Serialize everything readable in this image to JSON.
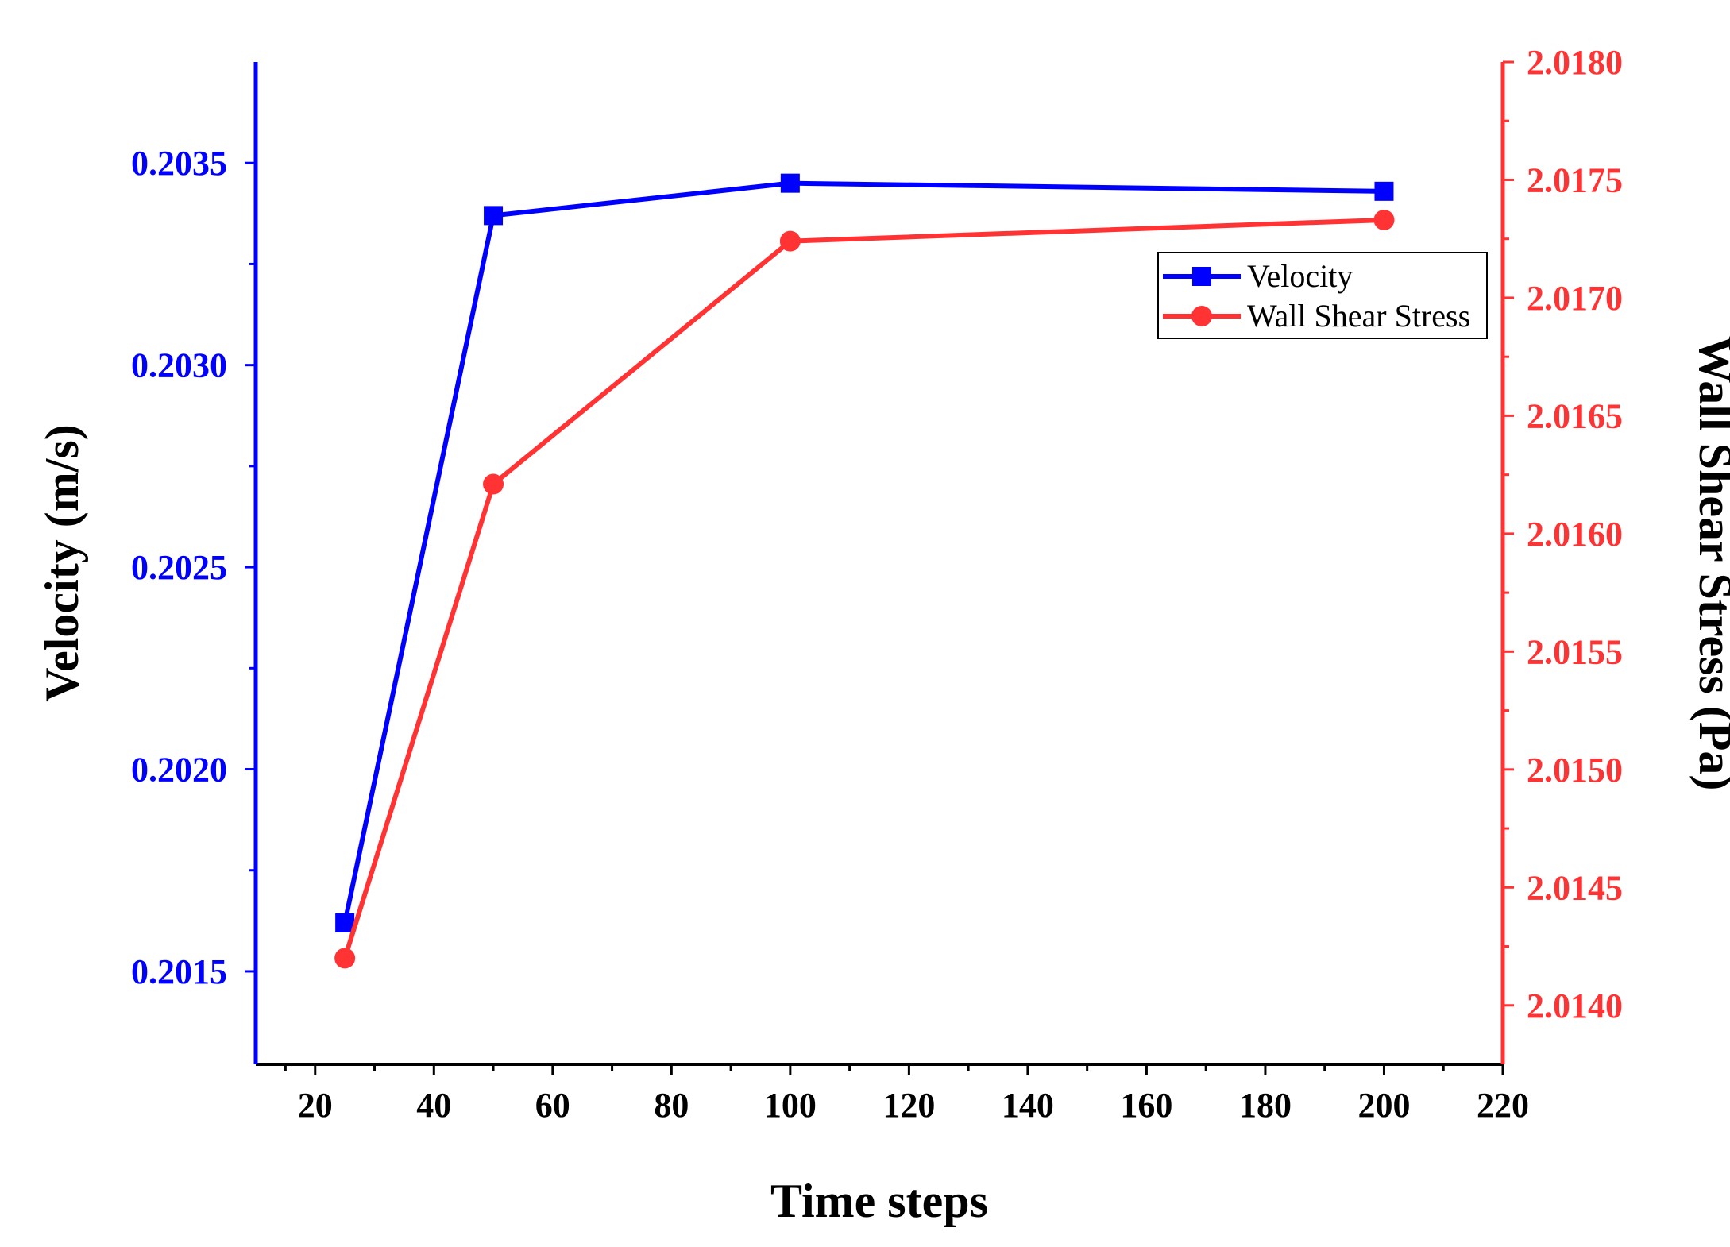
{
  "chart_data": {
    "type": "line",
    "x": [
      25,
      50,
      100,
      200
    ],
    "xlabel": "Time steps",
    "xlim": [
      10,
      220
    ],
    "xticks": [
      20,
      40,
      60,
      80,
      100,
      120,
      140,
      160,
      180,
      200,
      220
    ],
    "x_tick_labels": [
      "20",
      "40",
      "60",
      "80",
      "100",
      "120",
      "140",
      "160",
      "180",
      "200",
      "220"
    ],
    "y_left": {
      "label": "Velocity (m/s)",
      "lim": [
        0.20127,
        0.20375
      ],
      "ticks": [
        0.2015,
        0.202,
        0.2025,
        0.203,
        0.2035
      ],
      "tick_labels": [
        "0.2015",
        "0.2020",
        "0.2025",
        "0.2030",
        "0.2035"
      ],
      "color": "#0000FF"
    },
    "y_right": {
      "label": "Wall Shear Stress (Pa)",
      "lim": [
        2.01375,
        2.018
      ],
      "ticks": [
        2.014,
        2.0145,
        2.015,
        2.0155,
        2.016,
        2.0165,
        2.017,
        2.0175,
        2.018
      ],
      "tick_labels": [
        "2.0140",
        "2.0145",
        "2.0150",
        "2.0155",
        "2.0160",
        "2.0165",
        "2.0170",
        "2.0175",
        "2.0180"
      ],
      "color": "#FF3333"
    },
    "series": [
      {
        "name": "Velocity",
        "axis": "left",
        "marker": "square",
        "color": "#0000FF",
        "values": [
          0.20162,
          0.20337,
          0.20345,
          0.20343
        ]
      },
      {
        "name": "Wall Shear Stress",
        "axis": "right",
        "marker": "circle",
        "color": "#FF3333",
        "values": [
          2.0142,
          2.01621,
          2.01724,
          2.01733
        ]
      }
    ],
    "legend_position": "top-right",
    "grid": false
  }
}
